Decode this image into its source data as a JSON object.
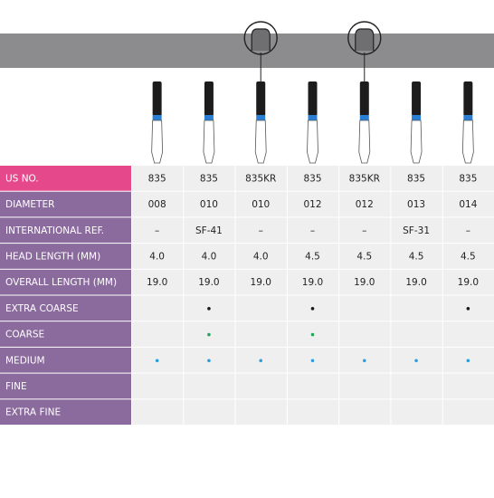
{
  "table": {
    "rows": [
      {
        "label": "US NO.",
        "cells": [
          "835",
          "835",
          "835KR",
          "835",
          "835KR",
          "835",
          "835"
        ]
      },
      {
        "label": "DIAMETER",
        "cells": [
          "008",
          "010",
          "010",
          "012",
          "012",
          "013",
          "014"
        ]
      },
      {
        "label": "INTERNATIONAL REF.",
        "cells": [
          "–",
          "SF-41",
          "–",
          "–",
          "–",
          "SF-31",
          "–"
        ]
      },
      {
        "label": "HEAD LENGTH (MM)",
        "cells": [
          "4.0",
          "4.0",
          "4.0",
          "4.5",
          "4.5",
          "4.5",
          "4.5"
        ]
      },
      {
        "label": "OVERALL LENGTH (MM)",
        "cells": [
          "19.0",
          "19.0",
          "19.0",
          "19.0",
          "19.0",
          "19.0",
          "19.0"
        ]
      },
      {
        "label": "EXTRA COARSE",
        "color": "#1a1a1a",
        "dots": [
          false,
          true,
          false,
          true,
          false,
          false,
          true
        ]
      },
      {
        "label": "COARSE",
        "color": "#1fa65a",
        "dots": [
          false,
          true,
          false,
          true,
          false,
          false,
          false
        ]
      },
      {
        "label": "MEDIUM",
        "color": "#2a9de0",
        "dots": [
          true,
          true,
          true,
          true,
          true,
          true,
          true
        ]
      },
      {
        "label": "FINE",
        "color": "#2a9de0",
        "dots": [
          false,
          false,
          false,
          false,
          false,
          false,
          false
        ]
      },
      {
        "label": "EXTRA FINE",
        "color": "#2a9de0",
        "dots": [
          false,
          false,
          false,
          false,
          false,
          false,
          false
        ]
      }
    ],
    "collared": [
      false,
      false,
      true,
      false,
      true,
      false,
      false
    ]
  }
}
